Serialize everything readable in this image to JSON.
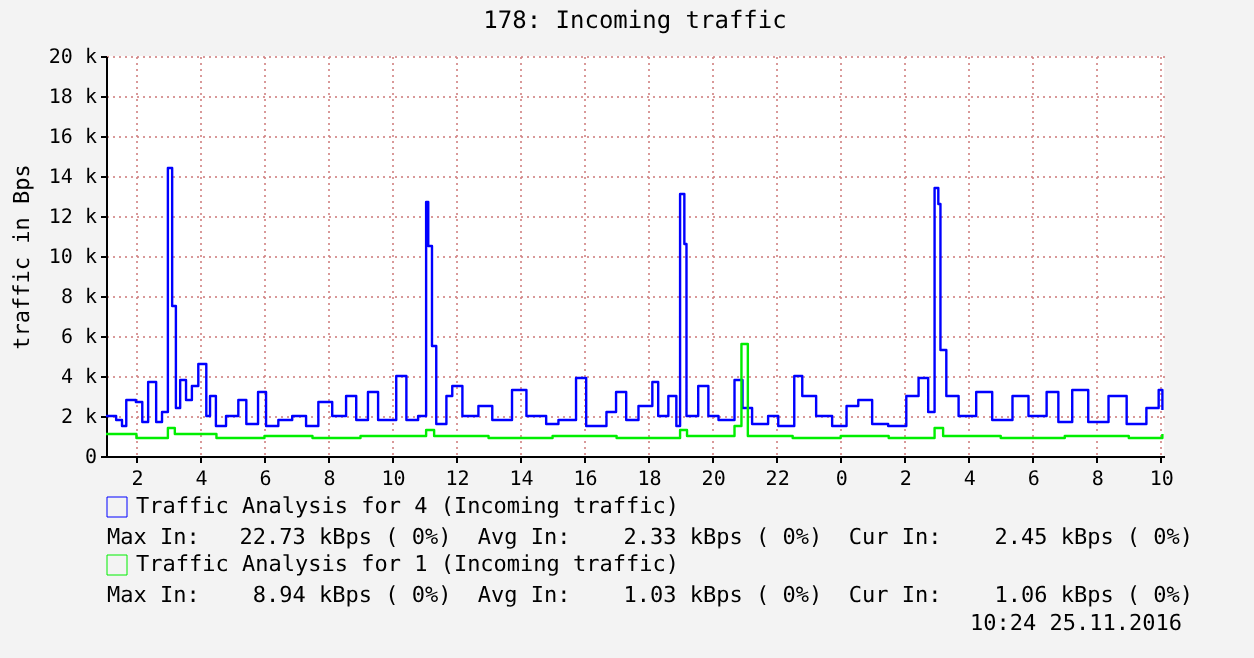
{
  "chart_data": {
    "type": "step",
    "title": "178: Incoming traffic",
    "ylabel": "traffic in Bps",
    "xlim": [
      "2016-11-24T01:03",
      "2016-11-25T10:06"
    ],
    "xticks": [
      {
        "value": "2016-11-24T02:00",
        "label": "2"
      },
      {
        "value": "2016-11-24T04:00",
        "label": "4"
      },
      {
        "value": "2016-11-24T06:00",
        "label": "6"
      },
      {
        "value": "2016-11-24T08:00",
        "label": "8"
      },
      {
        "value": "2016-11-24T10:00",
        "label": "10"
      },
      {
        "value": "2016-11-24T12:00",
        "label": "12"
      },
      {
        "value": "2016-11-24T14:00",
        "label": "14"
      },
      {
        "value": "2016-11-24T16:00",
        "label": "16"
      },
      {
        "value": "2016-11-24T18:00",
        "label": "18"
      },
      {
        "value": "2016-11-24T20:00",
        "label": "20"
      },
      {
        "value": "2016-11-24T22:00",
        "label": "22"
      },
      {
        "value": "2016-11-25T00:00",
        "label": "0"
      },
      {
        "value": "2016-11-25T02:00",
        "label": "2"
      },
      {
        "value": "2016-11-25T04:00",
        "label": "4"
      },
      {
        "value": "2016-11-25T06:00",
        "label": "6"
      },
      {
        "value": "2016-11-25T08:00",
        "label": "8"
      },
      {
        "value": "2016-11-25T10:00",
        "label": "10"
      }
    ],
    "ylim": [
      0,
      20000
    ],
    "yticks": [
      0,
      {
        "value": 2000,
        "label": "2 k"
      },
      {
        "value": 4000,
        "label": "4 k"
      },
      {
        "value": 6000,
        "label": "6 k"
      },
      {
        "value": 8000,
        "label": "8 k"
      },
      {
        "value": 10000,
        "label": "10 k"
      },
      {
        "value": 12000,
        "label": "12 k"
      },
      {
        "value": 14000,
        "label": "14 k"
      },
      {
        "value": 16000,
        "label": "16 k"
      },
      {
        "value": 18000,
        "label": "18 k"
      },
      {
        "value": 20000,
        "label": "20 k"
      }
    ],
    "grid": true,
    "legend": "bottom",
    "series": [
      {
        "name": "Traffic Analysis for 4 (Incoming traffic)",
        "color": "#0000ff",
        "x": [
          "2016-11-24T01:03",
          "2016-11-24T01:22",
          "2016-11-24T01:33",
          "2016-11-24T01:41",
          "2016-11-24T01:59",
          "2016-11-24T02:11",
          "2016-11-24T02:22",
          "2016-11-24T02:37",
          "2016-11-24T02:48",
          "2016-11-24T02:59",
          "2016-11-24T03:07",
          "2016-11-24T03:14",
          "2016-11-24T03:22",
          "2016-11-24T03:33",
          "2016-11-24T03:44",
          "2016-11-24T03:56",
          "2016-11-24T04:11",
          "2016-11-24T04:18",
          "2016-11-24T04:29",
          "2016-11-24T04:48",
          "2016-11-24T05:11",
          "2016-11-24T05:26",
          "2016-11-24T05:48",
          "2016-11-24T06:03",
          "2016-11-24T06:26",
          "2016-11-24T06:52",
          "2016-11-24T07:18",
          "2016-11-24T07:41",
          "2016-11-24T08:07",
          "2016-11-24T08:33",
          "2016-11-24T08:52",
          "2016-11-24T09:14",
          "2016-11-24T09:33",
          "2016-11-24T10:07",
          "2016-11-24T10:26",
          "2016-11-24T10:48",
          "2016-11-24T11:03",
          "2016-11-24T11:07",
          "2016-11-24T11:14",
          "2016-11-24T11:22",
          "2016-11-24T11:41",
          "2016-11-24T11:52",
          "2016-11-24T12:11",
          "2016-11-24T12:41",
          "2016-11-24T13:07",
          "2016-11-24T13:44",
          "2016-11-24T14:11",
          "2016-11-24T14:48",
          "2016-11-24T15:11",
          "2016-11-24T15:44",
          "2016-11-24T16:03",
          "2016-11-24T16:41",
          "2016-11-24T16:59",
          "2016-11-24T17:18",
          "2016-11-24T17:41",
          "2016-11-24T18:07",
          "2016-11-24T18:18",
          "2016-11-24T18:37",
          "2016-11-24T18:52",
          "2016-11-24T18:59",
          "2016-11-24T19:07",
          "2016-11-24T19:11",
          "2016-11-24T19:33",
          "2016-11-24T19:52",
          "2016-11-24T20:11",
          "2016-11-24T20:41",
          "2016-11-24T20:56",
          "2016-11-24T21:14",
          "2016-11-24T21:44",
          "2016-11-24T22:03",
          "2016-11-24T22:33",
          "2016-11-24T22:48",
          "2016-11-24T23:14",
          "2016-11-24T23:44",
          "2016-11-25T00:11",
          "2016-11-25T00:33",
          "2016-11-25T00:59",
          "2016-11-25T01:29",
          "2016-11-25T02:03",
          "2016-11-25T02:26",
          "2016-11-25T02:44",
          "2016-11-25T02:56",
          "2016-11-25T03:03",
          "2016-11-25T03:07",
          "2016-11-25T03:18",
          "2016-11-25T03:41",
          "2016-11-25T04:14",
          "2016-11-25T04:44",
          "2016-11-25T05:22",
          "2016-11-25T05:52",
          "2016-11-25T06:26",
          "2016-11-25T06:48",
          "2016-11-25T07:14",
          "2016-11-25T07:44",
          "2016-11-25T08:22",
          "2016-11-25T08:56",
          "2016-11-25T09:33",
          "2016-11-25T09:56",
          "2016-11-25T10:03"
        ],
        "values": [
          2000,
          1800,
          1500,
          2800,
          2700,
          1700,
          3700,
          1700,
          2200,
          14400,
          7500,
          2400,
          3800,
          2800,
          3500,
          4600,
          2000,
          3000,
          1500,
          2000,
          2800,
          1600,
          3200,
          1500,
          1800,
          2000,
          1500,
          2700,
          2000,
          3000,
          1800,
          3200,
          1800,
          4000,
          1800,
          2000,
          12700,
          10500,
          5500,
          1600,
          3000,
          3500,
          2000,
          2500,
          1800,
          3300,
          2000,
          1600,
          1800,
          3900,
          1500,
          2200,
          3200,
          1800,
          2500,
          3700,
          2000,
          3000,
          1500,
          13100,
          10600,
          2000,
          3500,
          2000,
          1800,
          3800,
          2400,
          1600,
          2000,
          1500,
          4000,
          3000,
          2000,
          1500,
          2500,
          2800,
          1600,
          1500,
          3000,
          3900,
          2200,
          13400,
          12600,
          5300,
          3000,
          2000,
          3200,
          1800,
          3000,
          2000,
          3200,
          1700,
          3300,
          1700,
          3000,
          1600,
          2400,
          3300,
          2300
        ]
      },
      {
        "name": "Traffic Analysis for 1 (Incoming traffic)",
        "color": "#00ee00",
        "x": [
          "2016-11-24T01:03",
          "2016-11-24T02:00",
          "2016-11-24T02:59",
          "2016-11-24T03:12",
          "2016-11-24T04:30",
          "2016-11-24T06:00",
          "2016-11-24T07:30",
          "2016-11-24T09:00",
          "2016-11-24T11:03",
          "2016-11-24T11:18",
          "2016-11-24T13:00",
          "2016-11-24T15:00",
          "2016-11-24T17:00",
          "2016-11-24T18:59",
          "2016-11-24T19:12",
          "2016-11-24T20:41",
          "2016-11-24T20:54",
          "2016-11-24T21:06",
          "2016-11-24T22:30",
          "2016-11-25T00:00",
          "2016-11-25T01:30",
          "2016-11-25T02:56",
          "2016-11-25T03:12",
          "2016-11-25T05:00",
          "2016-11-25T07:00",
          "2016-11-25T09:00",
          "2016-11-25T10:03"
        ],
        "values": [
          1100,
          900,
          1400,
          1100,
          900,
          1000,
          900,
          1000,
          1300,
          1000,
          900,
          1000,
          900,
          1300,
          1000,
          1500,
          5600,
          1000,
          900,
          1000,
          900,
          1400,
          1000,
          900,
          1000,
          900,
          1100
        ]
      }
    ],
    "annotations": [
      "Max In:   22.73 kBps ( 0%)  Avg In:    2.33 kBps ( 0%)  Cur In:    2.45 kBps ( 0%)",
      "Max In:    8.94 kBps ( 0%)  Avg In:    1.03 kBps ( 0%)  Cur In:    1.06 kBps ( 0%)",
      "10:24 25.11.2016"
    ]
  }
}
